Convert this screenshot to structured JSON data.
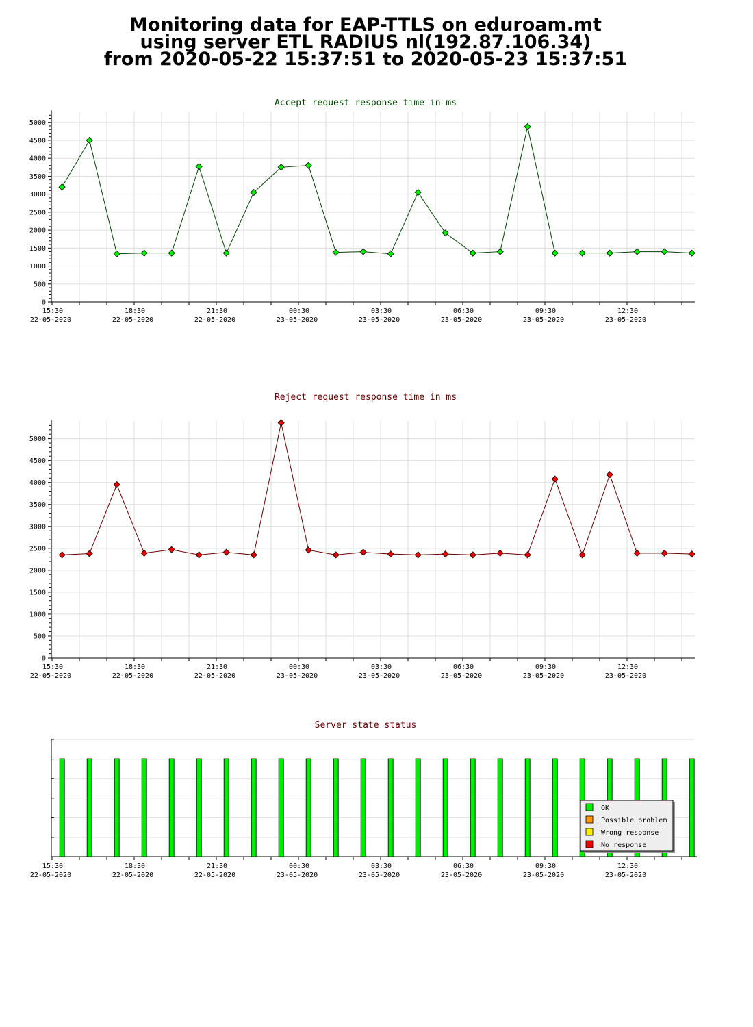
{
  "page": {
    "title_lines": [
      "Monitoring data for EAP-TTLS on eduroam.mt",
      "using server ETL RADIUS nl(192.87.106.34)",
      "from 2020-05-22 15:37:51 to 2020-05-23 15:37:51"
    ]
  },
  "colors": {
    "accept_line": "#004400",
    "accept_point": "#00ee00",
    "reject_line": "#660000",
    "reject_point": "#ee0000",
    "grid": "#dddddd",
    "accept_title": "#004400",
    "reject_title": "#660000",
    "status_title": "#660000"
  },
  "chart_data": [
    {
      "type": "line",
      "title": "Accept request response time in ms",
      "ylim": [
        0,
        5300
      ],
      "yticks": [
        0,
        500,
        1000,
        1500,
        2000,
        2500,
        3000,
        3500,
        4000,
        4500,
        5000
      ],
      "xlim": [
        "2020-05-22 15:30",
        "2020-05-23 15:30"
      ],
      "xtick_labels": [
        {
          "time": "15:30",
          "date": "22-05-2020"
        },
        {
          "time": "18:30",
          "date": "22-05-2020"
        },
        {
          "time": "21:30",
          "date": "22-05-2020"
        },
        {
          "time": "00:30",
          "date": "23-05-2020"
        },
        {
          "time": "03:30",
          "date": "23-05-2020"
        },
        {
          "time": "06:30",
          "date": "23-05-2020"
        },
        {
          "time": "09:30",
          "date": "23-05-2020"
        },
        {
          "time": "12:30",
          "date": "23-05-2020"
        }
      ],
      "x": [
        "2020-05-22 15:52",
        "2020-05-22 16:52",
        "2020-05-22 17:52",
        "2020-05-22 18:52",
        "2020-05-22 19:52",
        "2020-05-22 20:52",
        "2020-05-22 21:52",
        "2020-05-22 22:52",
        "2020-05-22 23:52",
        "2020-05-23 00:52",
        "2020-05-23 01:52",
        "2020-05-23 02:52",
        "2020-05-23 03:52",
        "2020-05-23 04:52",
        "2020-05-23 05:52",
        "2020-05-23 06:52",
        "2020-05-23 07:52",
        "2020-05-23 08:52",
        "2020-05-23 09:52",
        "2020-05-23 10:52",
        "2020-05-23 11:52",
        "2020-05-23 12:52",
        "2020-05-23 13:52",
        "2020-05-23 14:52"
      ],
      "series": [
        {
          "values": [
            3200,
            4500,
            1340,
            1360,
            1360,
            3770,
            1360,
            3050,
            3750,
            3800,
            1380,
            1400,
            1340,
            3050,
            1920,
            1360,
            1400,
            4880,
            1360,
            1360,
            1360,
            1400,
            1400,
            1360
          ]
        }
      ]
    },
    {
      "type": "line",
      "title": "Reject request response time in ms",
      "ylim": [
        0,
        5400
      ],
      "yticks": [
        0,
        500,
        1000,
        1500,
        2000,
        2500,
        3000,
        3500,
        4000,
        4500,
        5000
      ],
      "xlim": [
        "2020-05-22 15:30",
        "2020-05-23 15:30"
      ],
      "xtick_labels": [
        {
          "time": "15:30",
          "date": "22-05-2020"
        },
        {
          "time": "18:30",
          "date": "22-05-2020"
        },
        {
          "time": "21:30",
          "date": "22-05-2020"
        },
        {
          "time": "00:30",
          "date": "23-05-2020"
        },
        {
          "time": "03:30",
          "date": "23-05-2020"
        },
        {
          "time": "06:30",
          "date": "23-05-2020"
        },
        {
          "time": "09:30",
          "date": "23-05-2020"
        },
        {
          "time": "12:30",
          "date": "23-05-2020"
        }
      ],
      "x": [
        "2020-05-22 15:52",
        "2020-05-22 16:52",
        "2020-05-22 17:52",
        "2020-05-22 18:52",
        "2020-05-22 19:52",
        "2020-05-22 20:52",
        "2020-05-22 21:52",
        "2020-05-22 22:52",
        "2020-05-22 23:52",
        "2020-05-23 00:52",
        "2020-05-23 01:52",
        "2020-05-23 02:52",
        "2020-05-23 03:52",
        "2020-05-23 04:52",
        "2020-05-23 05:52",
        "2020-05-23 06:52",
        "2020-05-23 07:52",
        "2020-05-23 08:52",
        "2020-05-23 09:52",
        "2020-05-23 10:52",
        "2020-05-23 11:52",
        "2020-05-23 12:52",
        "2020-05-23 13:52",
        "2020-05-23 14:52"
      ],
      "series": [
        {
          "values": [
            2350,
            2380,
            3950,
            2390,
            2470,
            2350,
            2410,
            2350,
            5360,
            2460,
            2350,
            2410,
            2370,
            2350,
            2370,
            2350,
            2390,
            2350,
            4080,
            2350,
            4180,
            2390,
            2390,
            2370
          ]
        }
      ]
    },
    {
      "type": "bar",
      "title": "Server state status",
      "xlim": [
        "2020-05-22 15:30",
        "2020-05-23 15:30"
      ],
      "xtick_labels": [
        {
          "time": "15:30",
          "date": "22-05-2020"
        },
        {
          "time": "18:30",
          "date": "22-05-2020"
        },
        {
          "time": "21:30",
          "date": "22-05-2020"
        },
        {
          "time": "00:30",
          "date": "23-05-2020"
        },
        {
          "time": "03:30",
          "date": "23-05-2020"
        },
        {
          "time": "06:30",
          "date": "23-05-2020"
        },
        {
          "time": "09:30",
          "date": "23-05-2020"
        },
        {
          "time": "12:30",
          "date": "23-05-2020"
        }
      ],
      "x": [
        "2020-05-22 15:52",
        "2020-05-22 16:52",
        "2020-05-22 17:52",
        "2020-05-22 18:52",
        "2020-05-22 19:52",
        "2020-05-22 20:52",
        "2020-05-22 21:52",
        "2020-05-22 22:52",
        "2020-05-22 23:52",
        "2020-05-23 00:52",
        "2020-05-23 01:52",
        "2020-05-23 02:52",
        "2020-05-23 03:52",
        "2020-05-23 04:52",
        "2020-05-23 05:52",
        "2020-05-23 06:52",
        "2020-05-23 07:52",
        "2020-05-23 08:52",
        "2020-05-23 09:52",
        "2020-05-23 10:52",
        "2020-05-23 11:52",
        "2020-05-23 12:52",
        "2020-05-23 13:52",
        "2020-05-23 14:52"
      ],
      "states": [
        "OK",
        "OK",
        "OK",
        "OK",
        "OK",
        "OK",
        "OK",
        "OK",
        "OK",
        "OK",
        "OK",
        "OK",
        "OK",
        "OK",
        "OK",
        "OK",
        "OK",
        "OK",
        "OK",
        "OK",
        "OK",
        "OK",
        "OK",
        "OK"
      ],
      "legend": {
        "placement": "bottom-right",
        "entries": [
          {
            "label": "OK",
            "color": "#00ee00"
          },
          {
            "label": "Possible problem",
            "color": "#ff9900"
          },
          {
            "label": "Wrong response",
            "color": "#ffee00"
          },
          {
            "label": "No response",
            "color": "#ee0000"
          }
        ]
      }
    }
  ]
}
